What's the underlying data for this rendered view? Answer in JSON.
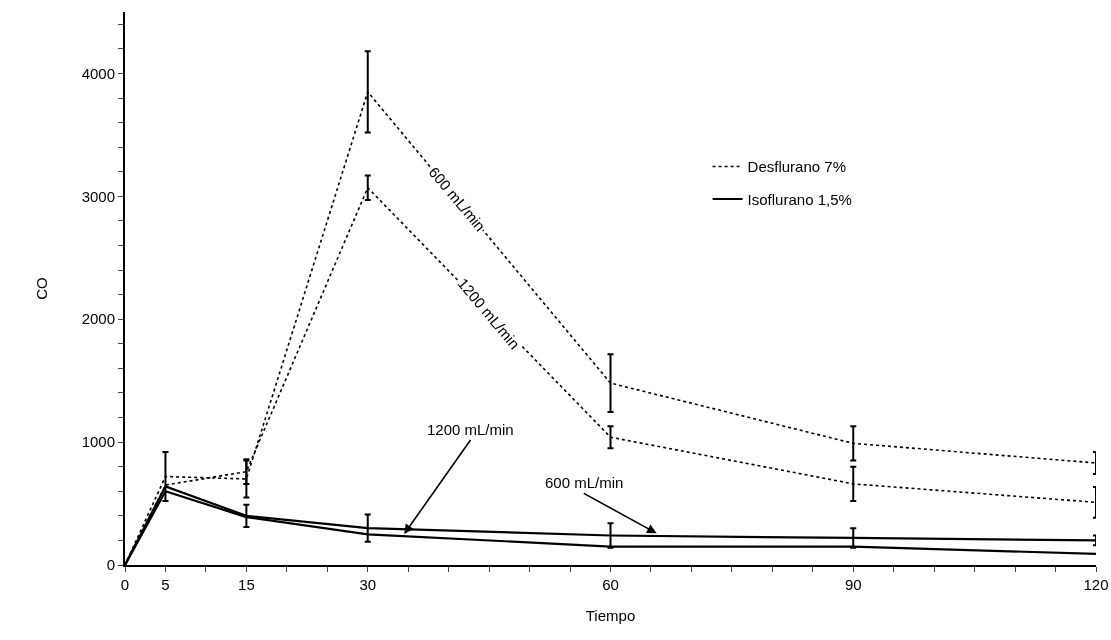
{
  "chart_data": {
    "type": "line",
    "xlabel": "Tiempo",
    "ylabel": "CO",
    "x": [
      0,
      5,
      15,
      30,
      60,
      90,
      120
    ],
    "series": [
      {
        "name": "Desflurano 7%",
        "color": "#000000",
        "line_style": "dotted",
        "values": [
          0,
          720,
          700,
          3850,
          1480,
          990,
          830
        ],
        "errors": [
          null,
          200,
          150,
          330,
          235,
          140,
          90
        ]
      },
      {
        "color": "#000000",
        "line_style": "dotted",
        "values": [
          0,
          650,
          760,
          3070,
          1040,
          660,
          510
        ],
        "errors": [
          null,
          null,
          100,
          100,
          90,
          140,
          125
        ]
      },
      {
        "name": "Isoflurano 1,5%",
        "color": "#000000",
        "line_style": "solid",
        "values": [
          0,
          640,
          400,
          300,
          240,
          220,
          200
        ],
        "errors": [
          null,
          null,
          90,
          110,
          100,
          80,
          40
        ]
      },
      {
        "color": "#000000",
        "line_style": "solid",
        "values": [
          0,
          600,
          390,
          250,
          150,
          150,
          90
        ]
      }
    ],
    "xlim": [
      0,
      120
    ],
    "xticks": [
      0,
      5,
      {
        "value": 10,
        "label": null
      },
      15,
      {
        "value": 20,
        "label": null
      },
      {
        "value": 25,
        "label": null
      },
      30,
      {
        "value": 35,
        "label": null
      },
      {
        "value": 40,
        "label": null
      },
      {
        "value": 45,
        "label": null
      },
      {
        "value": 50,
        "label": null
      },
      {
        "value": 55,
        "label": null
      },
      60,
      {
        "value": 65,
        "label": null
      },
      {
        "value": 70,
        "label": null
      },
      {
        "value": 75,
        "label": null
      },
      {
        "value": 80,
        "label": null
      },
      {
        "value": 85,
        "label": null
      },
      90,
      {
        "value": 95,
        "label": null
      },
      {
        "value": 100,
        "label": null
      },
      {
        "value": 105,
        "label": null
      },
      {
        "value": 110,
        "label": null
      },
      {
        "value": 115,
        "label": null
      },
      120
    ],
    "ylim": [
      0,
      4500
    ],
    "yticks": [
      0,
      {
        "value": 200,
        "label": null
      },
      {
        "value": 400,
        "label": null
      },
      {
        "value": 600,
        "label": null
      },
      {
        "value": 800,
        "label": null
      },
      1000,
      {
        "value": 1200,
        "label": null
      },
      {
        "value": 1400,
        "label": null
      },
      {
        "value": 1600,
        "label": null
      },
      {
        "value": 1800,
        "label": null
      },
      2000,
      {
        "value": 2200,
        "label": null
      },
      {
        "value": 2400,
        "label": null
      },
      {
        "value": 2600,
        "label": null
      },
      {
        "value": 2800,
        "label": null
      },
      3000,
      {
        "value": 3200,
        "label": null
      },
      {
        "value": 3400,
        "label": null
      },
      {
        "value": 3600,
        "label": null
      },
      {
        "value": 3800,
        "label": null
      },
      4000,
      {
        "value": 4200,
        "label": null
      },
      {
        "value": 4400,
        "label": null
      }
    ],
    "grid": false,
    "legend": "top right",
    "marker": "none",
    "annotations": [
      {
        "text": "600 mL/min",
        "x": 41,
        "y": 2980
      },
      {
        "text": "1200 mL/min",
        "x": 45,
        "y": 2050
      },
      {
        "text": "1200 mL/min",
        "x": 34.5,
        "y": 252
      },
      {
        "text": "600 mL/min",
        "x": 65.7,
        "y": 258
      }
    ]
  }
}
